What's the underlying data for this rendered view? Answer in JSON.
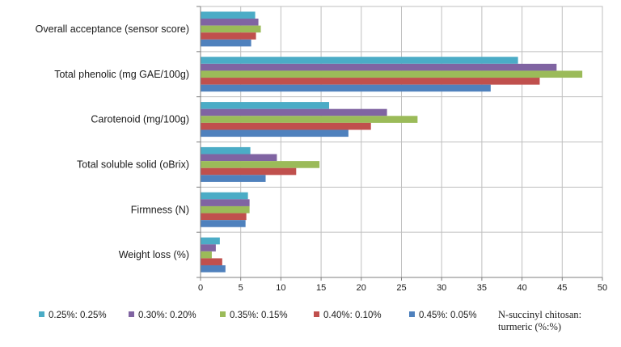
{
  "chart_data": {
    "type": "bar",
    "orientation": "horizontal",
    "categories": [
      "Overall acceptance (sensor score)",
      "Total phenolic (mg GAE/100g)",
      "Carotenoid (mg/100g)",
      "Total soluble solid  (oBrix)",
      "Firmness (N)",
      "Weight loss (%)"
    ],
    "series": [
      {
        "name": "0.25%: 0.25%",
        "color": "#4bacc6",
        "values": [
          6.8,
          39.5,
          16.0,
          6.2,
          5.9,
          2.4
        ]
      },
      {
        "name": "0.30%: 0.20%",
        "color": "#8064a2",
        "values": [
          7.2,
          44.3,
          23.2,
          9.5,
          6.1,
          1.9
        ]
      },
      {
        "name": "0.35%: 0.15%",
        "color": "#9bbb59",
        "values": [
          7.5,
          47.5,
          27.0,
          14.8,
          6.1,
          1.4
        ]
      },
      {
        "name": "0.40%: 0.10%",
        "color": "#c0504d",
        "values": [
          6.9,
          42.2,
          21.2,
          11.9,
          5.7,
          2.7
        ]
      },
      {
        "name": "0.45%: 0.05%",
        "color": "#4f81bd",
        "values": [
          6.3,
          36.1,
          18.4,
          8.1,
          5.6,
          3.1
        ]
      }
    ],
    "xlim": [
      0,
      50
    ],
    "xticks": [
      0,
      5,
      10,
      15,
      20,
      25,
      30,
      35,
      40,
      45,
      50
    ],
    "grid": true,
    "legend_position": "bottom",
    "legend_title": [
      "N-succinyl chitosan:",
      "turmeric (%:%)"
    ]
  }
}
